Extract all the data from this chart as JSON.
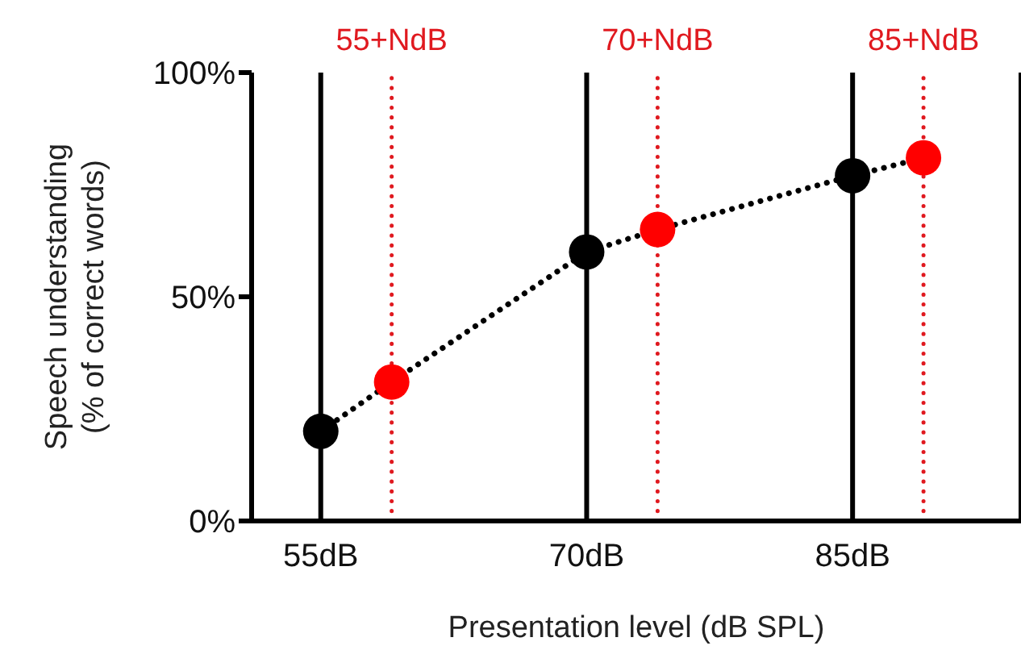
{
  "chart_data": {
    "type": "line",
    "xlabel": "Presentation level (dB SPL)",
    "ylabel": "Speech understanding\n(% of correct words)",
    "series": [
      {
        "x": [
          55,
          59,
          70,
          74,
          85,
          89
        ],
        "values": [
          20,
          31,
          60,
          65,
          77,
          81
        ],
        "color": "#000000",
        "colors": [
          "#000000",
          "#ff0000",
          "#000000",
          "#ff0000",
          "#000000",
          "#ff0000"
        ],
        "line_style": "dotted",
        "marker": "circle"
      }
    ],
    "xlim": [
      51.1,
      94.5
    ],
    "xticks": [
      {
        "value": 55,
        "label": "55dB"
      },
      {
        "value": 70,
        "label": "70dB"
      },
      {
        "value": 85,
        "label": "85dB"
      }
    ],
    "ylim": [
      0,
      100
    ],
    "yticks": [
      {
        "value": 0,
        "label": "0%"
      },
      {
        "value": 50,
        "label": "50%"
      },
      {
        "value": 100,
        "label": "100%"
      }
    ],
    "grid": "x",
    "ref_lines": [
      {
        "axis": "x",
        "value": 59,
        "label": "55+NdB",
        "color": "#e0191f",
        "line_style": "dotted"
      },
      {
        "axis": "x",
        "value": 74,
        "label": "70+NdB",
        "color": "#e0191f",
        "line_style": "dotted"
      },
      {
        "axis": "x",
        "value": 89,
        "label": "85+NdB",
        "color": "#e0191f",
        "line_style": "dotted"
      }
    ]
  }
}
